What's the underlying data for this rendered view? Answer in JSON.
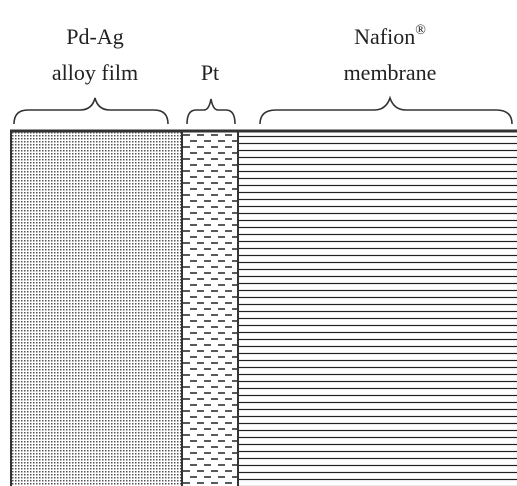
{
  "layers": [
    {
      "label": [
        "Pd-Ag",
        "alloy film"
      ]
    },
    {
      "label": [
        "Pt"
      ]
    },
    {
      "label": [
        "Nafion",
        "membrane"
      ],
      "superscript": "®"
    }
  ]
}
